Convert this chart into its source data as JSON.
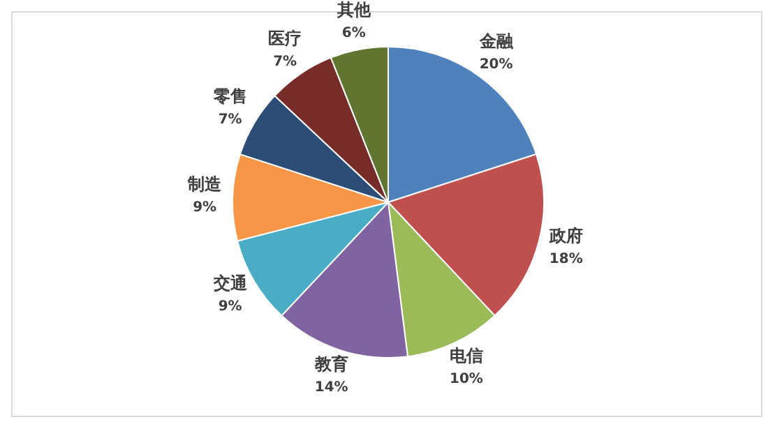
{
  "chart_data": {
    "type": "pie",
    "categories": [
      "金融",
      "政府",
      "电信",
      "教育",
      "交通",
      "制造",
      "零售",
      "医疗",
      "其他"
    ],
    "values": [
      20,
      18,
      10,
      14,
      9,
      9,
      7,
      7,
      6
    ],
    "value_labels": [
      "20%",
      "18%",
      "10%",
      "14%",
      "9%",
      "9%",
      "7%",
      "7%",
      "6%"
    ],
    "colors": [
      "#4f81bd",
      "#c0504d",
      "#9bbb59",
      "#8064a2",
      "#4bacc6",
      "#f79646",
      "#2c4d75",
      "#772c2a",
      "#5f7530"
    ],
    "legend": false
  }
}
